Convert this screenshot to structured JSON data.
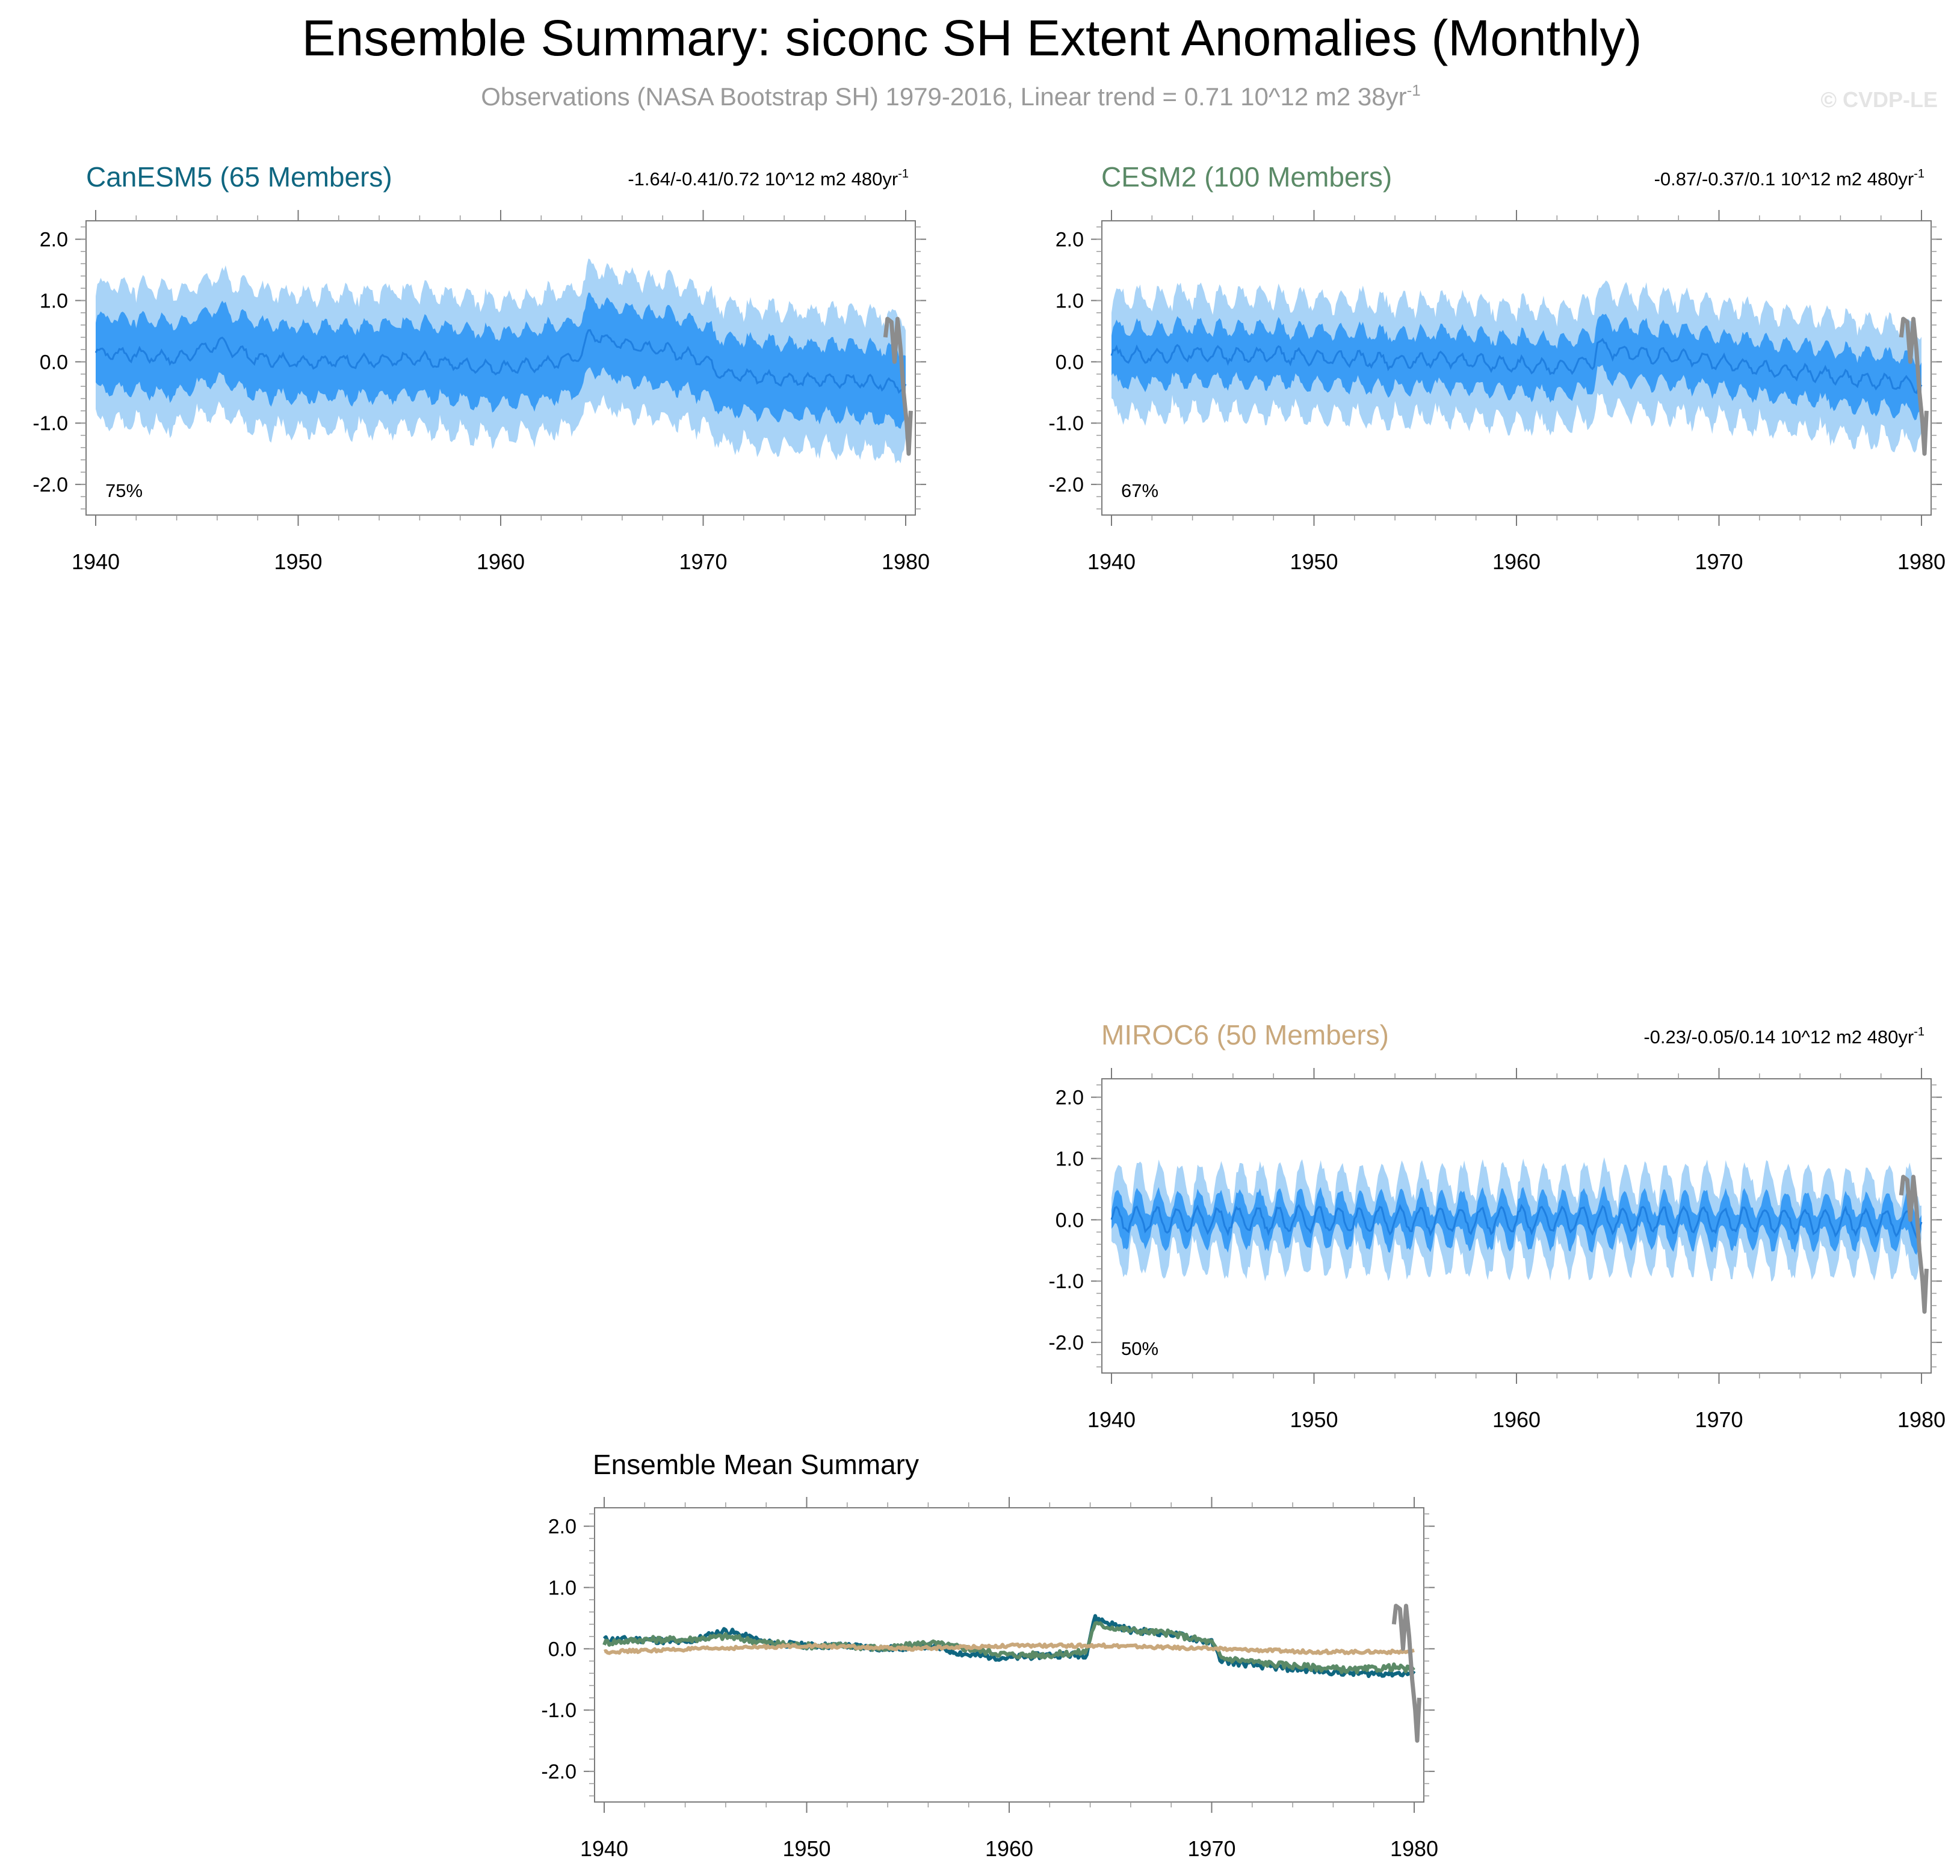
{
  "title": "Ensemble Summary: siconc SH Extent Anomalies (Monthly)",
  "subtitle": "Observations (NASA Bootstrap SH) 1979-2016, Linear trend = 0.71 10^12 m2 38yr",
  "subtitle_sup": "-1",
  "watermark": "© CVDP-LE",
  "colors": {
    "band_outer": "#a8d3f7",
    "band_inner": "#3a9cf5",
    "ens_mean": "#1f7fe0",
    "obs": "#8c8c8c",
    "canesm5": "#0f6680",
    "cesm2": "#5b8a67",
    "miroc6": "#c9a87c"
  },
  "chart_data": [
    {
      "type": "area",
      "id": "canesm5",
      "title": "CanESM5 (65 Members)",
      "title_color": "#0f6680",
      "trend_label": "-1.64/-0.41/0.72 10^12 m2 480yr",
      "trend_sup": "-1",
      "percent_label": "75%",
      "xlim": [
        1940,
        1980
      ],
      "ylim": [
        -2.5,
        2.3
      ],
      "xticks": [
        1940,
        1950,
        1960,
        1970,
        1980
      ],
      "yticks": [
        2.0,
        1.0,
        0.0,
        -1.0,
        -2.0
      ],
      "ytick_labels": [
        "2.0",
        "1.0",
        "0.0",
        "-1.0",
        "-2.0"
      ],
      "mean_keypoints": [
        [
          1940,
          0.15
        ],
        [
          1942,
          0.12
        ],
        [
          1944,
          0.05
        ],
        [
          1946,
          0.3
        ],
        [
          1948,
          0.05
        ],
        [
          1950,
          0.0
        ],
        [
          1952,
          0.02
        ],
        [
          1954,
          0.0
        ],
        [
          1956,
          0.05
        ],
        [
          1958,
          -0.05
        ],
        [
          1960,
          -0.1
        ],
        [
          1962,
          -0.05
        ],
        [
          1964,
          0.1
        ],
        [
          1964.3,
          0.45
        ],
        [
          1966,
          0.3
        ],
        [
          1968,
          0.2
        ],
        [
          1970,
          0.05
        ],
        [
          1971,
          -0.2
        ],
        [
          1973,
          -0.25
        ],
        [
          1975,
          -0.3
        ],
        [
          1977,
          -0.3
        ],
        [
          1979,
          -0.35
        ],
        [
          1980,
          -0.4
        ]
      ],
      "inner_halfwidth": 0.5,
      "outer_halfwidth": 0.95,
      "seasonal_amplitude": 0.25,
      "observations": [
        [
          1979.0,
          0.4
        ],
        [
          1979.1,
          0.7
        ],
        [
          1979.3,
          0.65
        ],
        [
          1979.45,
          0.0
        ],
        [
          1979.6,
          0.7
        ],
        [
          1979.75,
          0.2
        ],
        [
          1979.9,
          -0.5
        ],
        [
          1980.05,
          -1.0
        ],
        [
          1980.15,
          -1.5
        ],
        [
          1980.25,
          -0.8
        ]
      ]
    },
    {
      "type": "area",
      "id": "cesm2",
      "title": "CESM2 (100 Members)",
      "title_color": "#5b8a67",
      "trend_label": "-0.87/-0.37/0.1 10^12 m2 480yr",
      "trend_sup": "-1",
      "percent_label": "67%",
      "xlim": [
        1940,
        1980
      ],
      "ylim": [
        -2.5,
        2.3
      ],
      "xticks": [
        1940,
        1950,
        1960,
        1970,
        1980
      ],
      "yticks": [
        2.0,
        1.0,
        0.0,
        -1.0,
        -2.0
      ],
      "ytick_labels": [
        "2.0",
        "1.0",
        "0.0",
        "-1.0",
        "-2.0"
      ],
      "mean_keypoints": [
        [
          1940,
          0.1
        ],
        [
          1942,
          0.1
        ],
        [
          1944,
          0.15
        ],
        [
          1946,
          0.1
        ],
        [
          1948,
          0.12
        ],
        [
          1950,
          0.05
        ],
        [
          1952,
          0.05
        ],
        [
          1954,
          0.0
        ],
        [
          1956,
          0.05
        ],
        [
          1958,
          0.0
        ],
        [
          1960,
          -0.05
        ],
        [
          1962,
          -0.1
        ],
        [
          1963.8,
          0.0
        ],
        [
          1964,
          0.3
        ],
        [
          1965,
          0.15
        ],
        [
          1967,
          0.1
        ],
        [
          1969,
          0.05
        ],
        [
          1971,
          -0.05
        ],
        [
          1973,
          -0.15
        ],
        [
          1975,
          -0.2
        ],
        [
          1977,
          -0.3
        ],
        [
          1979,
          -0.35
        ],
        [
          1980,
          -0.4
        ]
      ],
      "inner_halfwidth": 0.35,
      "outer_halfwidth": 0.75,
      "seasonal_amplitude": 0.3,
      "observations": [
        [
          1979.0,
          0.4
        ],
        [
          1979.1,
          0.7
        ],
        [
          1979.3,
          0.65
        ],
        [
          1979.45,
          0.0
        ],
        [
          1979.6,
          0.7
        ],
        [
          1979.75,
          0.2
        ],
        [
          1979.9,
          -0.5
        ],
        [
          1980.05,
          -1.0
        ],
        [
          1980.15,
          -1.5
        ],
        [
          1980.25,
          -0.8
        ]
      ]
    },
    {
      "type": "area",
      "id": "miroc6",
      "title": "MIROC6 (50 Members)",
      "title_color": "#c9a87c",
      "trend_label": "-0.23/-0.05/0.14 10^12 m2 480yr",
      "trend_sup": "-1",
      "percent_label": "50%",
      "xlim": [
        1940,
        1980
      ],
      "ylim": [
        -2.5,
        2.3
      ],
      "xticks": [
        1940,
        1950,
        1960,
        1970,
        1980
      ],
      "yticks": [
        2.0,
        1.0,
        0.0,
        -1.0,
        -2.0
      ],
      "ytick_labels": [
        "2.0",
        "1.0",
        "0.0",
        "-1.0",
        "-2.0"
      ],
      "mean_keypoints": [
        [
          1940,
          0.0
        ],
        [
          1950,
          0.0
        ],
        [
          1960,
          0.0
        ],
        [
          1970,
          0.0
        ],
        [
          1980,
          -0.05
        ]
      ],
      "inner_halfwidth": 0.12,
      "outer_halfwidth": 0.28,
      "seasonal_amplitude": 0.55,
      "observations": [
        [
          1979.0,
          0.4
        ],
        [
          1979.1,
          0.7
        ],
        [
          1979.3,
          0.65
        ],
        [
          1979.45,
          0.0
        ],
        [
          1979.6,
          0.7
        ],
        [
          1979.75,
          0.2
        ],
        [
          1979.9,
          -0.5
        ],
        [
          1980.05,
          -1.0
        ],
        [
          1980.15,
          -1.5
        ],
        [
          1980.25,
          -0.8
        ]
      ]
    },
    {
      "type": "line",
      "id": "ensemble-mean",
      "title": "Ensemble Mean Summary",
      "xlim": [
        1940,
        1980
      ],
      "ylim": [
        -2.5,
        2.3
      ],
      "xticks": [
        1940,
        1950,
        1960,
        1970,
        1980
      ],
      "yticks": [
        2.0,
        1.0,
        0.0,
        -1.0,
        -2.0
      ],
      "ytick_labels": [
        "2.0",
        "1.0",
        "0.0",
        "-1.0",
        "-2.0"
      ],
      "series": [
        {
          "name": "CanESM5",
          "color": "#0f6680",
          "keypoints": [
            [
              1940,
              0.15
            ],
            [
              1942,
              0.15
            ],
            [
              1944,
              0.1
            ],
            [
              1946,
              0.3
            ],
            [
              1948,
              0.1
            ],
            [
              1950,
              0.05
            ],
            [
              1952,
              0.05
            ],
            [
              1954,
              0.0
            ],
            [
              1956,
              0.05
            ],
            [
              1958,
              -0.1
            ],
            [
              1960,
              -0.15
            ],
            [
              1962,
              -0.1
            ],
            [
              1963.8,
              -0.1
            ],
            [
              1964.2,
              0.5
            ],
            [
              1966,
              0.3
            ],
            [
              1968,
              0.25
            ],
            [
              1970,
              0.1
            ],
            [
              1970.5,
              -0.2
            ],
            [
              1973,
              -0.3
            ],
            [
              1975,
              -0.35
            ],
            [
              1977,
              -0.4
            ],
            [
              1979,
              -0.4
            ],
            [
              1980,
              -0.4
            ]
          ]
        },
        {
          "name": "CESM2",
          "color": "#5b8a67",
          "keypoints": [
            [
              1940,
              0.1
            ],
            [
              1942,
              0.15
            ],
            [
              1944,
              0.15
            ],
            [
              1946,
              0.2
            ],
            [
              1948,
              0.1
            ],
            [
              1950,
              0.05
            ],
            [
              1952,
              0.05
            ],
            [
              1954,
              0.0
            ],
            [
              1956,
              0.1
            ],
            [
              1958,
              0.0
            ],
            [
              1960,
              -0.1
            ],
            [
              1962,
              -0.1
            ],
            [
              1963.8,
              -0.05
            ],
            [
              1964.2,
              0.4
            ],
            [
              1966,
              0.3
            ],
            [
              1968,
              0.25
            ],
            [
              1970,
              0.1
            ],
            [
              1970.5,
              -0.15
            ],
            [
              1973,
              -0.25
            ],
            [
              1975,
              -0.3
            ],
            [
              1977,
              -0.35
            ],
            [
              1979,
              -0.3
            ],
            [
              1980,
              -0.35
            ]
          ]
        },
        {
          "name": "MIROC6",
          "color": "#c9a87c",
          "keypoints": [
            [
              1940,
              -0.05
            ],
            [
              1945,
              0.0
            ],
            [
              1950,
              0.05
            ],
            [
              1955,
              0.0
            ],
            [
              1960,
              0.05
            ],
            [
              1965,
              0.05
            ],
            [
              1970,
              0.0
            ],
            [
              1975,
              -0.05
            ],
            [
              1980,
              -0.05
            ]
          ]
        }
      ],
      "observations": [
        [
          1979.0,
          0.4
        ],
        [
          1979.1,
          0.7
        ],
        [
          1979.3,
          0.65
        ],
        [
          1979.45,
          0.0
        ],
        [
          1979.6,
          0.7
        ],
        [
          1979.75,
          0.2
        ],
        [
          1979.9,
          -0.5
        ],
        [
          1980.05,
          -1.0
        ],
        [
          1980.15,
          -1.5
        ],
        [
          1980.25,
          -0.8
        ]
      ]
    }
  ]
}
